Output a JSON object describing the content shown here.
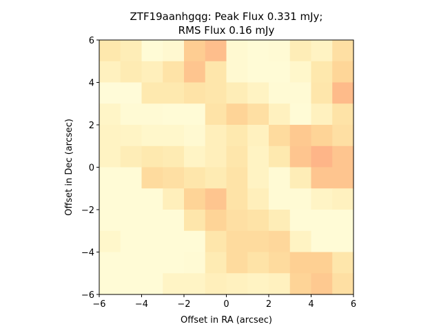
{
  "chart_data": {
    "type": "heatmap",
    "title_lines": [
      "ZTF19aanhgqg: Peak Flux 0.331 mJy;",
      "RMS Flux 0.16 mJy"
    ],
    "xlabel": "Offset in RA (arcsec)",
    "ylabel": "Offset in Dec (arcsec)",
    "xlim": [
      -6,
      6
    ],
    "ylim": [
      -6,
      6
    ],
    "xticks": [
      -6,
      -4,
      -2,
      0,
      2,
      4,
      6
    ],
    "yticks": [
      -6,
      -4,
      -2,
      0,
      2,
      4,
      6
    ],
    "x_tick_labels": [
      "−6",
      "−4",
      "−2",
      "0",
      "2",
      "4",
      "6"
    ],
    "y_tick_labels": [
      "−6",
      "−4",
      "−2",
      "0",
      "2",
      "4",
      "6"
    ],
    "grid": false,
    "colormap": "YlOrRd",
    "color_range": [
      0,
      1
    ],
    "rows_top_to_bottom": [
      [
        0.25,
        0.2,
        0.05,
        0.08,
        0.4,
        0.48,
        0.07,
        0.05,
        0.06,
        0.2,
        0.14,
        0.3
      ],
      [
        0.16,
        0.22,
        0.18,
        0.28,
        0.44,
        0.26,
        0.07,
        0.05,
        0.05,
        0.1,
        0.25,
        0.35
      ],
      [
        0.04,
        0.04,
        0.24,
        0.24,
        0.28,
        0.26,
        0.2,
        0.14,
        0.06,
        0.06,
        0.26,
        0.5
      ],
      [
        0.12,
        0.06,
        0.06,
        0.05,
        0.05,
        0.28,
        0.36,
        0.3,
        0.16,
        0.05,
        0.16,
        0.28
      ],
      [
        0.14,
        0.13,
        0.1,
        0.1,
        0.07,
        0.18,
        0.24,
        0.16,
        0.32,
        0.42,
        0.36,
        0.3
      ],
      [
        0.14,
        0.2,
        0.24,
        0.22,
        0.13,
        0.18,
        0.26,
        0.14,
        0.24,
        0.44,
        0.52,
        0.44
      ],
      [
        0.05,
        0.05,
        0.32,
        0.3,
        0.26,
        0.22,
        0.28,
        0.14,
        0.06,
        0.2,
        0.44,
        0.44
      ],
      [
        0.05,
        0.05,
        0.05,
        0.18,
        0.36,
        0.44,
        0.28,
        0.18,
        0.06,
        0.06,
        0.13,
        0.16
      ],
      [
        0.05,
        0.05,
        0.05,
        0.05,
        0.26,
        0.36,
        0.3,
        0.28,
        0.2,
        0.05,
        0.05,
        0.05
      ],
      [
        0.1,
        0.05,
        0.05,
        0.05,
        0.05,
        0.26,
        0.32,
        0.32,
        0.34,
        0.14,
        0.05,
        0.05
      ],
      [
        0.05,
        0.05,
        0.05,
        0.05,
        0.06,
        0.22,
        0.32,
        0.28,
        0.32,
        0.38,
        0.38,
        0.26
      ],
      [
        0.05,
        0.05,
        0.05,
        0.13,
        0.13,
        0.18,
        0.16,
        0.14,
        0.16,
        0.36,
        0.42,
        0.3
      ]
    ]
  }
}
